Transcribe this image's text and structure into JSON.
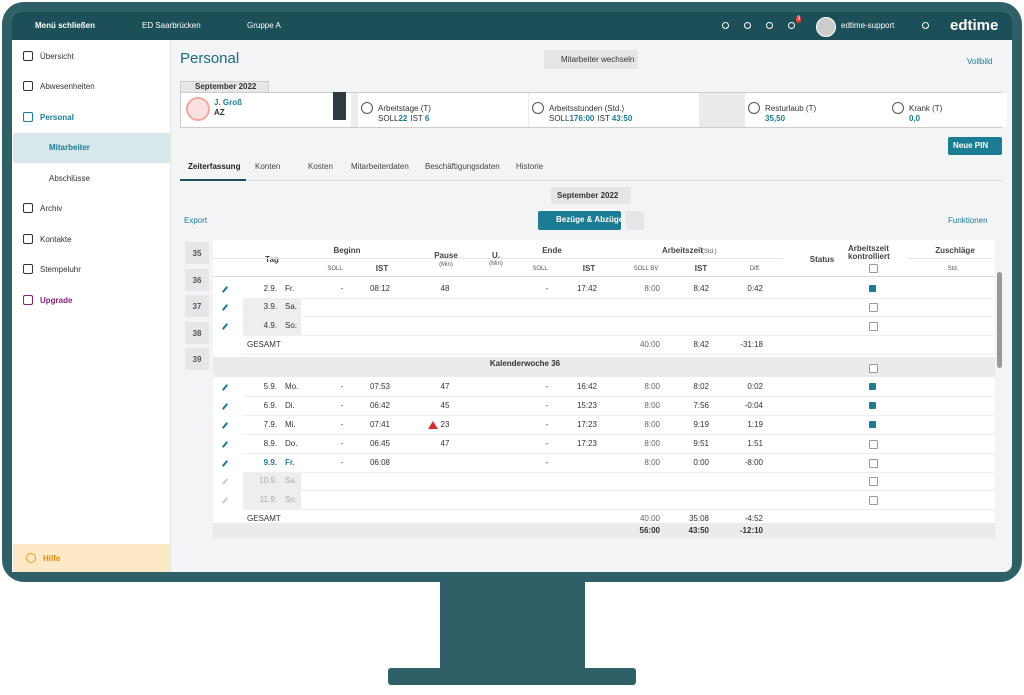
{
  "topbar": {
    "menu": "Menü schließen",
    "location": "ED Saarbrücken",
    "group": "Gruppe A",
    "badge": "3",
    "user": "edtime-support",
    "logo": "edtime"
  },
  "sidebar": {
    "items": [
      "Übersicht",
      "Abwesenheiten",
      "Personal",
      "Mitarbeiter",
      "Abschlüsse",
      "Archiv",
      "Kontakte",
      "Stempeluhr",
      "Upgrade"
    ],
    "help": "Hilfe"
  },
  "header": {
    "title": "Personal",
    "switch_button": "Mitarbeiter wechseln",
    "fullscreen": "Vollbild"
  },
  "employee": {
    "month_tab": "September 2022",
    "name": "J. Groß",
    "role": "AZ",
    "stats": [
      {
        "label": "Arbeitstage (T)",
        "soll_label": "SOLL",
        "soll": "22",
        "ist_label": "IST",
        "ist": "6"
      },
      {
        "label": "Arbeitsstunden (Std.)",
        "soll_label": "SOLL",
        "soll": "176:00",
        "ist_label": "IST",
        "ist": "43:50"
      },
      {
        "label": "Resturlaub (T)",
        "value": "35,50"
      },
      {
        "label": "Krank (T)",
        "value": "0,0"
      }
    ],
    "pin_button": "Neue PIN"
  },
  "tabs": [
    "Zeiterfassung",
    "Konten",
    "Kosten",
    "Mitarbeiterdaten",
    "Beschäftigungsdaten",
    "Historie"
  ],
  "toolbar": {
    "month": "September 2022",
    "export": "Export",
    "add_button": "Bezüge & Abzüge",
    "functions": "Funktionen"
  },
  "weeks": [
    35,
    36,
    37,
    38,
    39
  ],
  "table": {
    "headers": {
      "tag": "Tag",
      "beginn": "Beginn",
      "soll": "SOLL",
      "ist": "IST",
      "pause": "Pause",
      "pause_unit": "(Min)",
      "u": "U.",
      "u_unit": "(Min)",
      "ende": "Ende",
      "ende_soll": "SOLL",
      "ende_ist": "IST",
      "arbeitszeit": "Arbeitszeit",
      "arbeitszeit_unit": "(Std.)",
      "soll_bv": "SOLL BV",
      "az_ist": "IST",
      "diff": "Diff.",
      "status": "Status",
      "kontrolliert": "Arbeitszeit kontrolliert",
      "zuschlaege": "Zuschläge",
      "zuschlaege_unit": "Std."
    },
    "rows": [
      {
        "date": "2.9.",
        "day": "Fr.",
        "b_soll": "-",
        "b_ist": "08:12",
        "pause": "48",
        "e_soll": "-",
        "e_ist": "17:42",
        "soll_bv": "8:00",
        "ist": "8:42",
        "diff": "0:42",
        "checked": true
      },
      {
        "date": "3.9.",
        "day": "Sa.",
        "checked": false
      },
      {
        "date": "4.9.",
        "day": "So.",
        "checked": false
      },
      {
        "total": "GESAMT",
        "soll_bv": "40:00",
        "ist": "8:42",
        "diff": "-31:18"
      },
      {
        "week": "Kalenderwoche 36",
        "checked": false
      },
      {
        "date": "5.9.",
        "day": "Mo.",
        "b_soll": "-",
        "b_ist": "07:53",
        "pause": "47",
        "e_soll": "-",
        "e_ist": "16:42",
        "soll_bv": "8:00",
        "ist": "8:02",
        "diff": "0:02",
        "checked": true
      },
      {
        "date": "6.9.",
        "day": "Di.",
        "b_soll": "-",
        "b_ist": "06:42",
        "pause": "45",
        "e_soll": "-",
        "e_ist": "15:23",
        "soll_bv": "8:00",
        "ist": "7:56",
        "diff": "-0:04",
        "checked": true
      },
      {
        "date": "7.9.",
        "day": "Mi.",
        "b_soll": "-",
        "b_ist": "07:41",
        "pause": "23",
        "warning": true,
        "e_soll": "-",
        "e_ist": "17:23",
        "soll_bv": "8:00",
        "ist": "9:19",
        "diff": "1:19",
        "checked": true
      },
      {
        "date": "8.9.",
        "day": "Do.",
        "b_soll": "-",
        "b_ist": "06:45",
        "pause": "47",
        "e_soll": "-",
        "e_ist": "17:23",
        "soll_bv": "8:00",
        "ist": "9:51",
        "diff": "1:51",
        "checked": false
      },
      {
        "date": "9.9.",
        "day": "Fr.",
        "today": true,
        "b_soll": "-",
        "b_ist": "06:08",
        "e_soll": "-",
        "soll_bv": "8:00",
        "ist": "0:00",
        "diff": "-8:00",
        "checked": false
      },
      {
        "date": "10.9.",
        "day": "Sa.",
        "future": true,
        "checked": false
      },
      {
        "date": "11.9.",
        "day": "So.",
        "future": true,
        "checked": false
      },
      {
        "total": "GESAMT",
        "soll_bv": "40:00",
        "ist": "35:08",
        "diff": "-4:52"
      }
    ],
    "footer": {
      "soll_bv": "56:00",
      "ist": "43:50",
      "diff": "-12:10"
    }
  }
}
